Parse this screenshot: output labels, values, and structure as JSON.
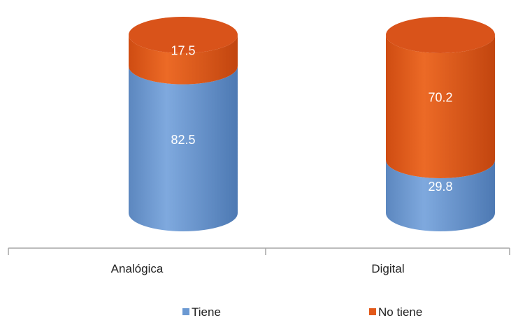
{
  "chart_data": {
    "type": "bar",
    "stacked": true,
    "shape": "cylinder",
    "unit": "percent",
    "categories": [
      "Analógica",
      "Digital"
    ],
    "series": [
      {
        "name": "Tiene",
        "values": [
          82.5,
          29.8
        ]
      },
      {
        "name": "No tiene",
        "values": [
          17.5,
          70.2
        ]
      }
    ],
    "ylim": [
      0,
      100
    ],
    "grid": false,
    "legend": "bottom"
  },
  "colors": {
    "Tiene": "#6b99d2",
    "No tiene": "#e2591a",
    "axis": "#999999"
  }
}
